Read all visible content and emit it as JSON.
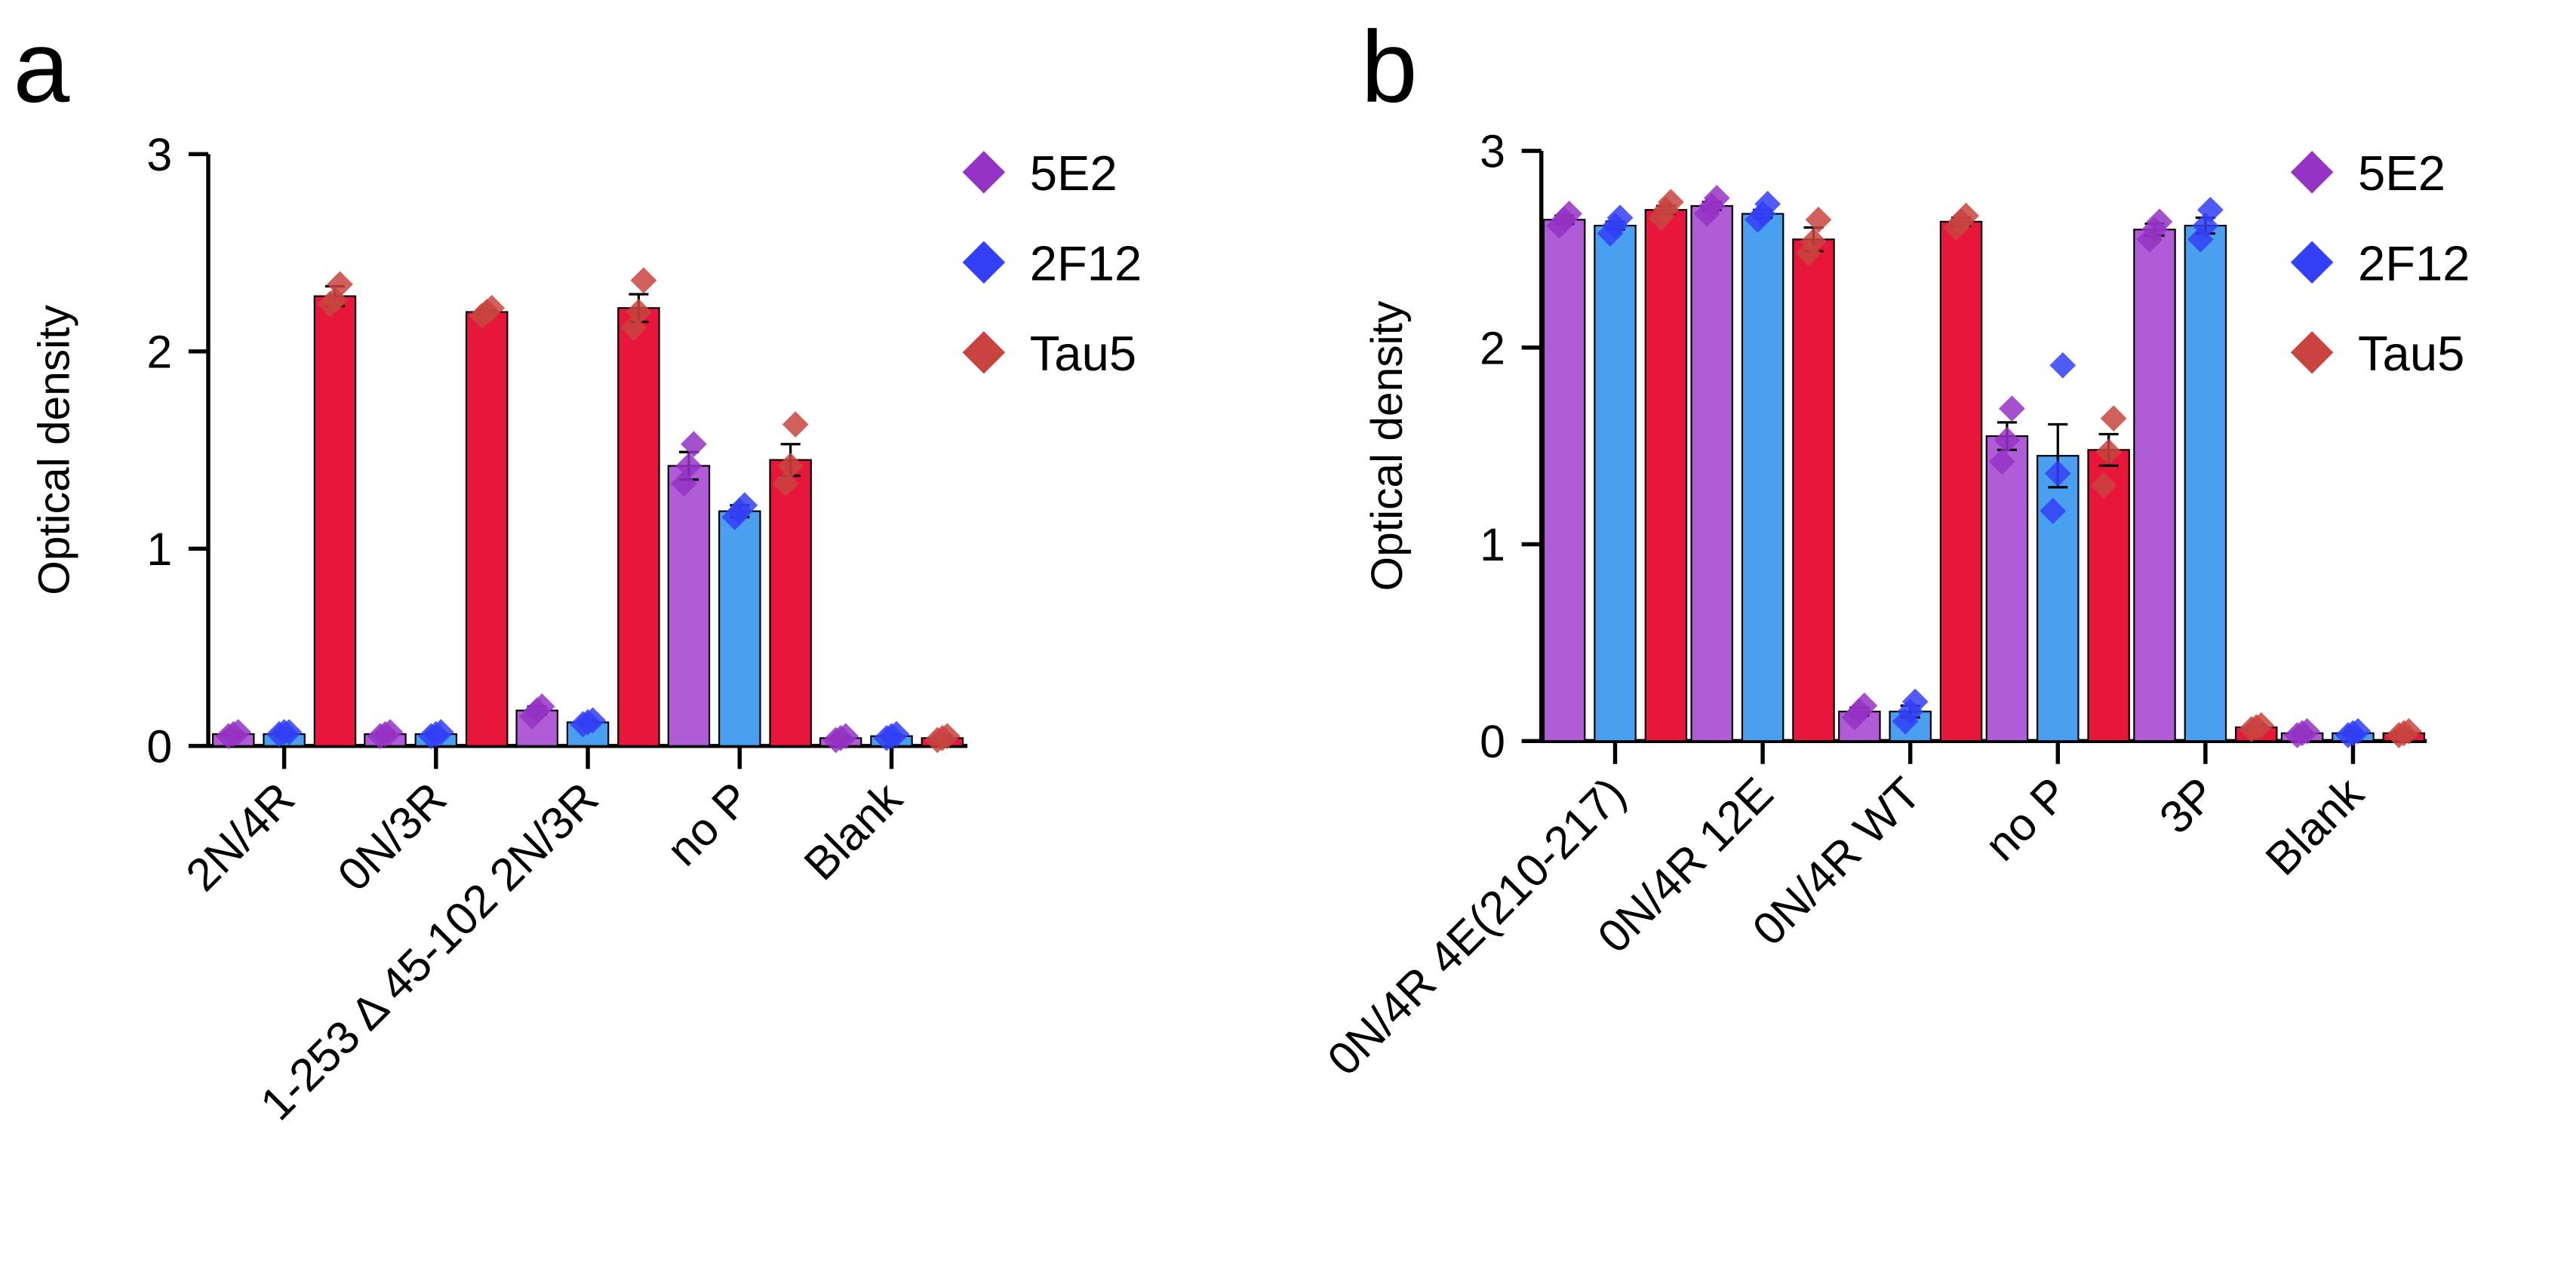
{
  "chart_data": [
    {
      "type": "bar",
      "panel": "a",
      "ylabel": "Optical density",
      "ylim": [
        0,
        3
      ],
      "yticks": [
        0,
        1,
        2,
        3
      ],
      "categories": [
        "2N/4R",
        "0N/3R",
        "1-253 Δ 45-102 2N/3R",
        "no P",
        "Blank"
      ],
      "series": [
        {
          "name": "5E2",
          "color": "#b05cd6",
          "point_color": "#9533c4",
          "values": [
            0.06,
            0.06,
            0.18,
            1.42,
            0.04
          ],
          "errors": [
            0.01,
            0.01,
            0.02,
            0.07,
            0.01
          ],
          "points": [
            [
              0.05,
              0.06,
              0.07
            ],
            [
              0.05,
              0.06,
              0.07
            ],
            [
              0.15,
              0.18,
              0.2
            ],
            [
              1.33,
              1.42,
              1.53
            ],
            [
              0.03,
              0.04,
              0.05
            ]
          ]
        },
        {
          "name": "2F12",
          "color": "#4a9ff0",
          "point_color": "#3340f5",
          "values": [
            0.06,
            0.06,
            0.12,
            1.19,
            0.05
          ],
          "errors": [
            0.01,
            0.01,
            0.01,
            0.03,
            0.01
          ],
          "points": [
            [
              0.06,
              0.07,
              0.07
            ],
            [
              0.05,
              0.06,
              0.07
            ],
            [
              0.11,
              0.12,
              0.13
            ],
            [
              1.16,
              1.19,
              1.22
            ],
            [
              0.04,
              0.05,
              0.06
            ]
          ]
        },
        {
          "name": "Tau5",
          "color": "#e8163a",
          "point_color": "#c8443f",
          "values": [
            2.28,
            2.2,
            2.22,
            1.45,
            0.04
          ],
          "errors": [
            0.05,
            0.01,
            0.07,
            0.08,
            0.01
          ],
          "points": [
            [
              2.24,
              2.26,
              2.34
            ],
            [
              2.18,
              2.2,
              2.22
            ],
            [
              2.12,
              2.2,
              2.36
            ],
            [
              1.33,
              1.42,
              1.63
            ],
            [
              0.03,
              0.04,
              0.05
            ]
          ]
        }
      ]
    },
    {
      "type": "bar",
      "panel": "b",
      "ylabel": "Optical density",
      "ylim": [
        0,
        3
      ],
      "yticks": [
        0,
        1,
        2,
        3
      ],
      "categories": [
        "0N/4R 4E(210-217)",
        "0N/4R 12E",
        "0N/4R WT",
        "no P",
        "3P",
        "Blank"
      ],
      "series": [
        {
          "name": "5E2",
          "color": "#b05cd6",
          "point_color": "#9533c4",
          "values": [
            2.65,
            2.72,
            0.15,
            1.55,
            2.6,
            0.04
          ],
          "errors": [
            0.02,
            0.02,
            0.02,
            0.07,
            0.03,
            0.01
          ],
          "points": [
            [
              2.62,
              2.65,
              2.68
            ],
            [
              2.68,
              2.72,
              2.76
            ],
            [
              0.12,
              0.15,
              0.18
            ],
            [
              1.42,
              1.53,
              1.69
            ],
            [
              2.55,
              2.6,
              2.64
            ],
            [
              0.03,
              0.04,
              0.05
            ]
          ]
        },
        {
          "name": "2F12",
          "color": "#4a9ff0",
          "point_color": "#3340f5",
          "values": [
            2.62,
            2.68,
            0.15,
            1.45,
            2.62,
            0.04
          ],
          "errors": [
            0.02,
            0.02,
            0.03,
            0.16,
            0.04,
            0.01
          ],
          "points": [
            [
              2.58,
              2.62,
              2.66
            ],
            [
              2.65,
              2.68,
              2.73
            ],
            [
              0.1,
              0.15,
              0.2
            ],
            [
              1.17,
              1.36,
              1.91
            ],
            [
              2.55,
              2.62,
              2.7
            ],
            [
              0.03,
              0.04,
              0.05
            ]
          ]
        },
        {
          "name": "Tau5",
          "color": "#e8163a",
          "point_color": "#c8443f",
          "values": [
            2.7,
            2.55,
            2.64,
            1.48,
            0.07,
            0.04
          ],
          "errors": [
            0.02,
            0.06,
            0.02,
            0.08,
            0.01,
            0.01
          ],
          "points": [
            [
              2.66,
              2.7,
              2.74
            ],
            [
              2.48,
              2.54,
              2.65
            ],
            [
              2.61,
              2.64,
              2.67
            ],
            [
              1.3,
              1.47,
              1.64
            ],
            [
              0.06,
              0.07,
              0.08
            ],
            [
              0.03,
              0.04,
              0.05
            ]
          ]
        }
      ]
    }
  ]
}
